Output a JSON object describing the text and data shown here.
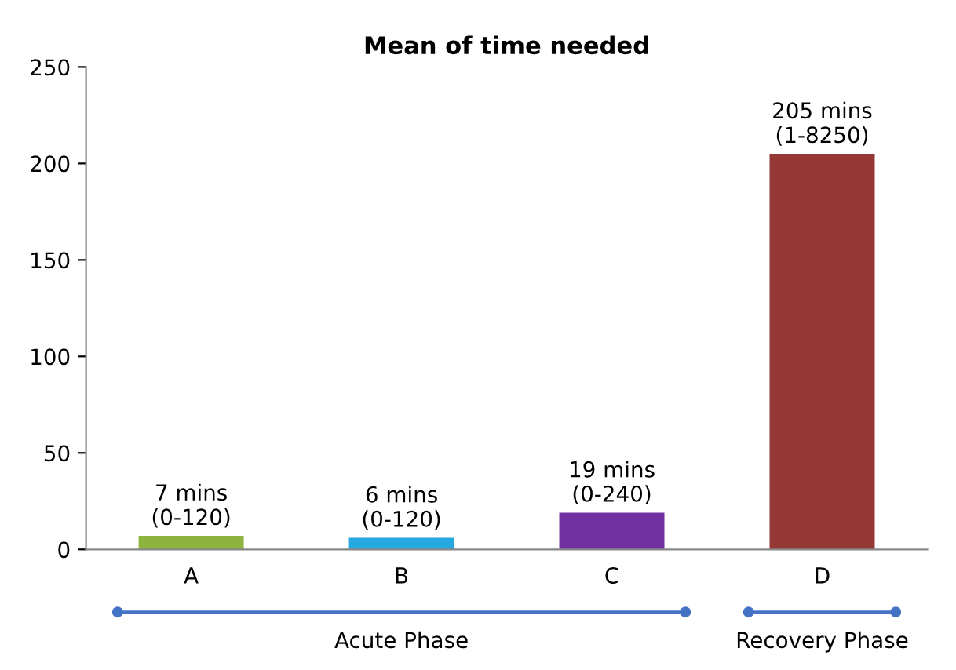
{
  "chart_data": {
    "type": "bar",
    "title": "Mean of time needed",
    "categories": [
      "A",
      "B",
      "C",
      "D"
    ],
    "values": [
      7,
      6,
      19,
      205
    ],
    "colors": [
      "#8db43e",
      "#26a9e0",
      "#7030a0",
      "#953735"
    ],
    "value_labels": [
      "7 mins\n(0-120)",
      "6 mins\n(0-120)",
      "19 mins\n(0-240)",
      "205 mins\n(1-8250)"
    ],
    "ylim": [
      0,
      250
    ],
    "yticks": [
      0,
      50,
      100,
      150,
      200,
      250
    ],
    "grid": false,
    "legend": false,
    "annotations": [
      "Acute Phase",
      "Recovery Phase"
    ]
  }
}
